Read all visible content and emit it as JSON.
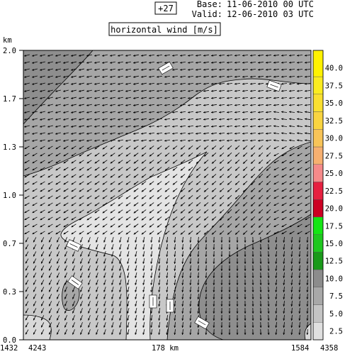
{
  "header": {
    "lead": "+27",
    "base_label": "Base:",
    "base_value": "11-06-2010  00 UTC",
    "valid_label": "Valid:",
    "valid_value": "12-06-2010  03 UTC"
  },
  "chart_data": {
    "type": "heatmap",
    "title": "horizontal wind [m/s]",
    "ylabel": "km",
    "ylim": [
      0.0,
      2.0
    ],
    "y_ticks": [
      "0.0",
      "0.3",
      "0.7",
      "1.0",
      "1.3",
      "1.7",
      "2.0"
    ],
    "x_tick_labels": [
      "1432",
      "4243",
      "178 km",
      "1584",
      "4358"
    ],
    "colorbar": {
      "levels": [
        "2.5",
        "5.0",
        "7.5",
        "10.0",
        "12.5",
        "15.0",
        "17.5",
        "20.0",
        "22.5",
        "25.0",
        "27.5",
        "30.0",
        "32.5",
        "35.0",
        "37.5",
        "40.0"
      ],
      "colors": [
        "#e0e0e0",
        "#c4c4c4",
        "#a8a8a8",
        "#8c8c8c",
        "#1a9a1a",
        "#1fc81f",
        "#14e614",
        "#cc0022",
        "#e62040",
        "#f58a8a",
        "#f7b070",
        "#f8c458",
        "#f9d440",
        "#fae030",
        "#fbec20",
        "#fff200"
      ]
    },
    "field_colors": {
      "band_5_7_5": "#c8c8c8",
      "band_7_5_10": "#a6a6a6",
      "band_10_12_5": "#8e8e8e",
      "band_2_5_5": "#d9d9d9",
      "band_weakest": "#e4e4e4"
    },
    "grid": false,
    "legend": "right colorbar"
  }
}
